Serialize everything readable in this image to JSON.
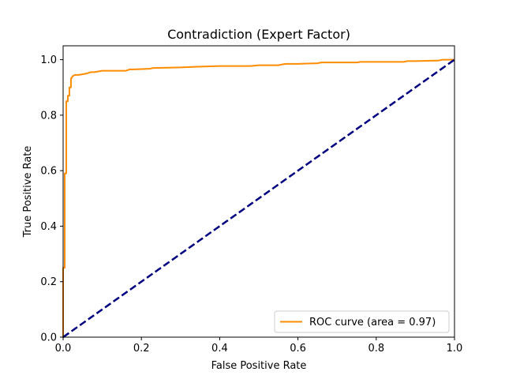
{
  "chart_data": {
    "type": "line",
    "title": "Contradiction (Expert Factor)",
    "xlabel": "False Positive Rate",
    "ylabel": "True Positive Rate",
    "xlim": [
      0.0,
      1.0
    ],
    "ylim": [
      0.0,
      1.05
    ],
    "xticks": [
      0.0,
      0.2,
      0.4,
      0.6,
      0.8,
      1.0
    ],
    "xtick_labels": [
      "0.0",
      "0.2",
      "0.4",
      "0.6",
      "0.8",
      "1.0"
    ],
    "yticks": [
      0.0,
      0.2,
      0.4,
      0.6,
      0.8,
      1.0
    ],
    "ytick_labels": [
      "0.0",
      "0.2",
      "0.4",
      "0.6",
      "0.8",
      "1.0"
    ],
    "grid": false,
    "legend_position": "lower-right",
    "series": [
      {
        "name": "ROC curve (area = 0.97)",
        "color": "#ff8c00",
        "style": "solid",
        "x": [
          0.0,
          0.0,
          0.004,
          0.004,
          0.008,
          0.008,
          0.012,
          0.012,
          0.016,
          0.016,
          0.02,
          0.02,
          0.024,
          0.03,
          0.04,
          0.06,
          0.07,
          0.08,
          0.1,
          0.16,
          0.17,
          0.18,
          0.22,
          0.23,
          0.3,
          0.35,
          0.4,
          0.48,
          0.5,
          0.55,
          0.56,
          0.57,
          0.6,
          0.65,
          0.66,
          0.67,
          0.75,
          0.76,
          0.87,
          0.88,
          0.9,
          0.96,
          0.97,
          0.99,
          1.0
        ],
        "y": [
          0.0,
          0.25,
          0.25,
          0.59,
          0.59,
          0.85,
          0.85,
          0.87,
          0.87,
          0.9,
          0.9,
          0.93,
          0.94,
          0.945,
          0.945,
          0.95,
          0.955,
          0.955,
          0.96,
          0.96,
          0.965,
          0.965,
          0.967,
          0.97,
          0.972,
          0.975,
          0.977,
          0.977,
          0.98,
          0.98,
          0.983,
          0.985,
          0.985,
          0.987,
          0.99,
          0.99,
          0.99,
          0.992,
          0.992,
          0.995,
          0.995,
          0.997,
          1.0,
          1.0,
          1.0
        ]
      },
      {
        "name": "",
        "color": "#000080",
        "style": "dashed",
        "x": [
          0.0,
          1.0
        ],
        "y": [
          0.0,
          1.0
        ]
      }
    ]
  }
}
